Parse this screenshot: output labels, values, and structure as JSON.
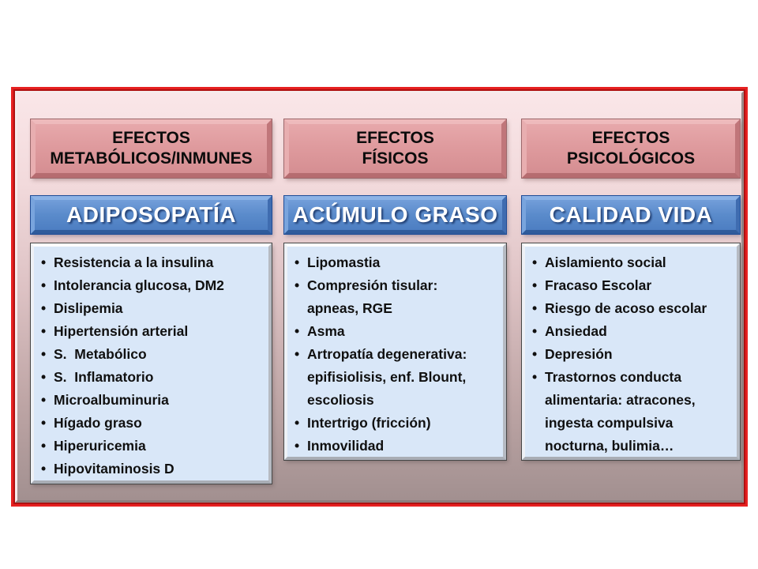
{
  "slide": {
    "columns": [
      {
        "id": "metabolic",
        "category_header": "EFECTOS\nMETABÓLICOS/INMUNES",
        "mechanism_label": "ADIPOSOPATÍA",
        "items": [
          {
            "bullet": true,
            "text": "Resistencia a la insulina"
          },
          {
            "bullet": true,
            "text": "Intolerancia glucosa, DM2"
          },
          {
            "bullet": true,
            "text": "Dislipemia"
          },
          {
            "bullet": true,
            "text": "Hipertensión arterial"
          },
          {
            "bullet": true,
            "text": "S.  Metabólico"
          },
          {
            "bullet": true,
            "text": "S.  Inflamatorio"
          },
          {
            "bullet": true,
            "text": "Microalbuminuria"
          },
          {
            "bullet": true,
            "text": "Hígado graso"
          },
          {
            "bullet": true,
            "text": "Hiperuricemia"
          },
          {
            "bullet": true,
            "text": "Hipovitaminosis D"
          }
        ]
      },
      {
        "id": "physical",
        "category_header": "EFECTOS\nFÍSICOS",
        "mechanism_label": "ACÚMULO GRASO",
        "items": [
          {
            "bullet": true,
            "text": "Lipomastia"
          },
          {
            "bullet": true,
            "text": "Compresión tisular:"
          },
          {
            "bullet": false,
            "text": "apneas, RGE"
          },
          {
            "bullet": true,
            "text": "Asma"
          },
          {
            "bullet": true,
            "text": "Artropatía degenerativa:"
          },
          {
            "bullet": false,
            "text": "epifisiolisis, enf. Blount,"
          },
          {
            "bullet": false,
            "text": "escoliosis"
          },
          {
            "bullet": true,
            "text": "Intertrigo (fricción)"
          },
          {
            "bullet": true,
            "text": "Inmovilidad"
          }
        ]
      },
      {
        "id": "psychological",
        "category_header": "EFECTOS\nPSICOLÓGICOS",
        "mechanism_label": "CALIDAD VIDA",
        "items": [
          {
            "bullet": true,
            "text": "Aislamiento social"
          },
          {
            "bullet": true,
            "text": "Fracaso Escolar"
          },
          {
            "bullet": true,
            "text": "Riesgo de acoso escolar"
          },
          {
            "bullet": true,
            "text": "Ansiedad"
          },
          {
            "bullet": true,
            "text": "Depresión"
          },
          {
            "bullet": true,
            "text": "Trastornos conducta"
          },
          {
            "bullet": false,
            "text": "alimentaria: atracones,"
          },
          {
            "bullet": false,
            "text": "ingesta compulsiva"
          },
          {
            "bullet": false,
            "text": "nocturna, bulimia…"
          }
        ]
      }
    ],
    "colors": {
      "frame_red": "#e62020",
      "frame_red_dark": "#b01010",
      "background_top": "#fae6e8",
      "background_bottom": "#a29090",
      "category_fill": "#df9b9e",
      "category_border": "#9c686b",
      "label_fill": "#5a8bcb",
      "label_border": "#1f4c96",
      "label_text": "#ffffff",
      "list_fill": "#d9e7f8",
      "list_text": "#101010"
    }
  }
}
